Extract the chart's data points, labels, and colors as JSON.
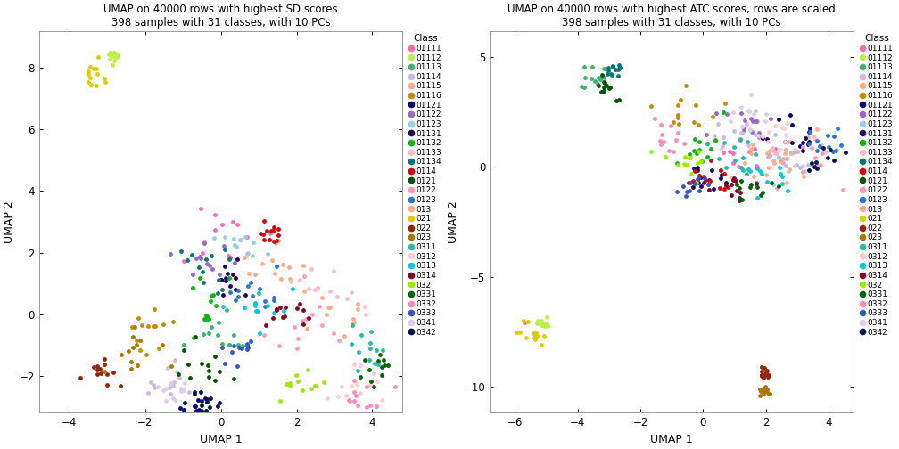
{
  "title1": "UMAP on 40000 rows with highest SD scores\n398 samples with 31 classes, with 10 PCs",
  "title2": "UMAP on 40000 rows with highest ATC scores, rows are scaled\n398 samples with 31 classes, with 10 PCs",
  "xlabel": "UMAP 1",
  "ylabel": "UMAP 2",
  "legend_title": "Class",
  "classes": [
    "01111",
    "01112",
    "01113",
    "01114",
    "01115",
    "01116",
    "01121",
    "01122",
    "01123",
    "01131",
    "01132",
    "01133",
    "01134",
    "0114",
    "0121",
    "0122",
    "0123",
    "013",
    "021",
    "022",
    "023",
    "0311",
    "0312",
    "0313",
    "0314",
    "032",
    "0331",
    "0332",
    "0333",
    "0341",
    "0342"
  ],
  "class_colors": {
    "01111": "#FF69B4",
    "01112": "#BFEF45",
    "01113": "#3CB371",
    "01114": "#CCBBDD",
    "01115": "#FFAA88",
    "01116": "#CC8800",
    "01121": "#000080",
    "01122": "#9966CC",
    "01123": "#99CCEE",
    "01131": "#220066",
    "01132": "#00BB00",
    "01133": "#FFBBCC",
    "01134": "#007777",
    "0114": "#DD0000",
    "0121": "#005500",
    "0122": "#FF99BB",
    "0123": "#2277DD",
    "013": "#FFAA88",
    "021": "#DDCC00",
    "022": "#992200",
    "023": "#AA7700",
    "0311": "#22BBAA",
    "0312": "#FFCCCC",
    "0313": "#00CCDD",
    "0314": "#880022",
    "032": "#99EE00",
    "0331": "#006600",
    "0332": "#FF88BB",
    "0333": "#3355CC",
    "0341": "#DDCCEE",
    "0342": "#001155"
  },
  "plot1_xlim": [
    -4.8,
    4.8
  ],
  "plot1_ylim": [
    -3.2,
    9.2
  ],
  "plot1_xticks": [
    -4,
    -2,
    0,
    2,
    4
  ],
  "plot1_yticks": [
    -2,
    0,
    2,
    4,
    6,
    8
  ],
  "plot2_xlim": [
    -6.8,
    4.8
  ],
  "plot2_ylim": [
    -11.2,
    6.2
  ],
  "plot2_xticks": [
    -6,
    -4,
    -2,
    0,
    2,
    4
  ],
  "plot2_yticks": [
    -10,
    -5,
    0,
    5
  ],
  "n_samples": 398,
  "pt_size": 12,
  "pt_alpha": 1.0
}
